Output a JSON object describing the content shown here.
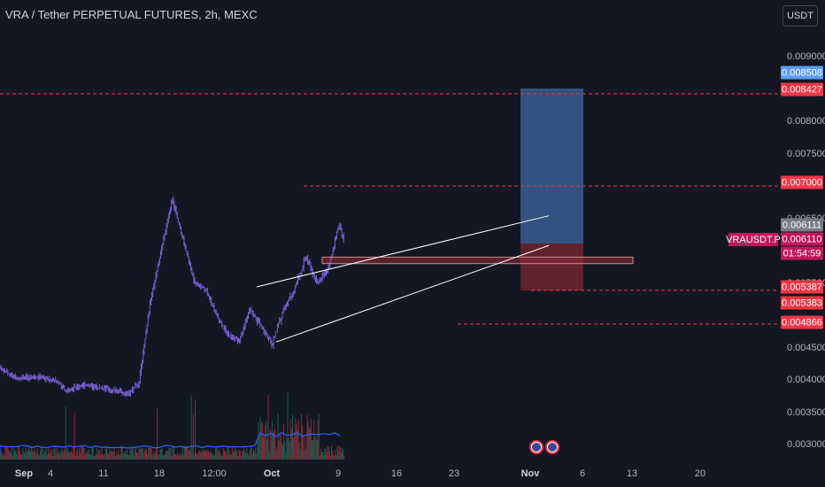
{
  "header": {
    "title": "VRA / Tether PERPETUAL FUTURES, 2h, MEXC"
  },
  "currency_button": "USDT",
  "colors": {
    "background": "#131722",
    "candles": "#7b61d6",
    "volume_red": "#8b2838",
    "volume_green": "#1f5a4e",
    "price_red": "#f23645",
    "target_blue": "#5b9cf6",
    "symbol_pink": "#c2185b"
  },
  "chart_data": {
    "type": "candlestick",
    "symbol": "VRAUSDT.P",
    "ylim": [
      0.0027,
      0.0094
    ],
    "y_ticks": [
      {
        "label": "0.009000",
        "value": 0.009
      },
      {
        "label": "0.008000",
        "value": 0.008
      },
      {
        "label": "0.007500",
        "value": 0.0075
      },
      {
        "label": "0.006500",
        "value": 0.0065
      },
      {
        "label": "0.005500",
        "value": 0.0055
      },
      {
        "label": "0.004500",
        "value": 0.0045
      },
      {
        "label": "0.004000",
        "value": 0.004
      },
      {
        "label": "0.003500",
        "value": 0.0035
      },
      {
        "label": "0.003000",
        "value": 0.003
      }
    ],
    "x_ticks": [
      "Sep",
      "4",
      "11",
      "18",
      "12:00",
      "Oct",
      "9",
      "16",
      "23",
      "Nov",
      "6",
      "13",
      "20"
    ],
    "price_path": [
      {
        "date": "Aug 31",
        "price": 0.00418
      },
      {
        "date": "Sep 3",
        "price": 0.00402
      },
      {
        "date": "Sep 7",
        "price": 0.00405
      },
      {
        "date": "Sep 10",
        "price": 0.00398
      },
      {
        "date": "Sep 12",
        "price": 0.00383
      },
      {
        "date": "Sep 15",
        "price": 0.00392
      },
      {
        "date": "Sep 20",
        "price": 0.00385
      },
      {
        "date": "Sep 23",
        "price": 0.00378
      },
      {
        "date": "Sep 25",
        "price": 0.00395
      },
      {
        "date": "Sep 27",
        "price": 0.0052
      },
      {
        "date": "Sep 29",
        "price": 0.006
      },
      {
        "date": "Oct 1",
        "price": 0.0068
      },
      {
        "date": "Oct 3",
        "price": 0.00615
      },
      {
        "date": "Oct 5",
        "price": 0.0055
      },
      {
        "date": "Oct 7",
        "price": 0.0054
      },
      {
        "date": "Oct 9",
        "price": 0.005
      },
      {
        "date": "Oct 11",
        "price": 0.0047
      },
      {
        "date": "Oct 13",
        "price": 0.0046
      },
      {
        "date": "Oct 15",
        "price": 0.0051
      },
      {
        "date": "Oct 17",
        "price": 0.0048
      },
      {
        "date": "Oct 19",
        "price": 0.00455
      },
      {
        "date": "Oct 21",
        "price": 0.0051
      },
      {
        "date": "Oct 23",
        "price": 0.0054
      },
      {
        "date": "Oct 25",
        "price": 0.0059
      },
      {
        "date": "Oct 27",
        "price": 0.0055
      },
      {
        "date": "Oct 29",
        "price": 0.0057
      },
      {
        "date": "Oct 31",
        "price": 0.0064
      },
      {
        "date": "Nov 1",
        "price": 0.00611
      }
    ],
    "rising_wedge": {
      "upper": [
        {
          "date": "Oct 16",
          "price": 0.00544
        },
        {
          "date": "Nov 3",
          "price": 0.00654
        }
      ],
      "lower": [
        {
          "date": "Oct 19",
          "price": 0.0046
        },
        {
          "date": "Nov 3",
          "price": 0.00608
        }
      ]
    },
    "horizontal_levels": [
      0.008427,
      0.007,
      0.005387,
      0.004866
    ],
    "resistance_zone": [
      0.0058,
      0.0059
    ],
    "position": {
      "entry": 0.00611,
      "target": 0.008508,
      "stop": 0.005383
    },
    "price_labels": {
      "target": "0.008508",
      "level_top": "0.008427",
      "level_high": "0.007000",
      "last": "0.006111",
      "current": "0.006110",
      "countdown": "01:54:59",
      "level_mid": "0.005387",
      "stop": "0.005383",
      "level_low": "0.004866"
    }
  }
}
